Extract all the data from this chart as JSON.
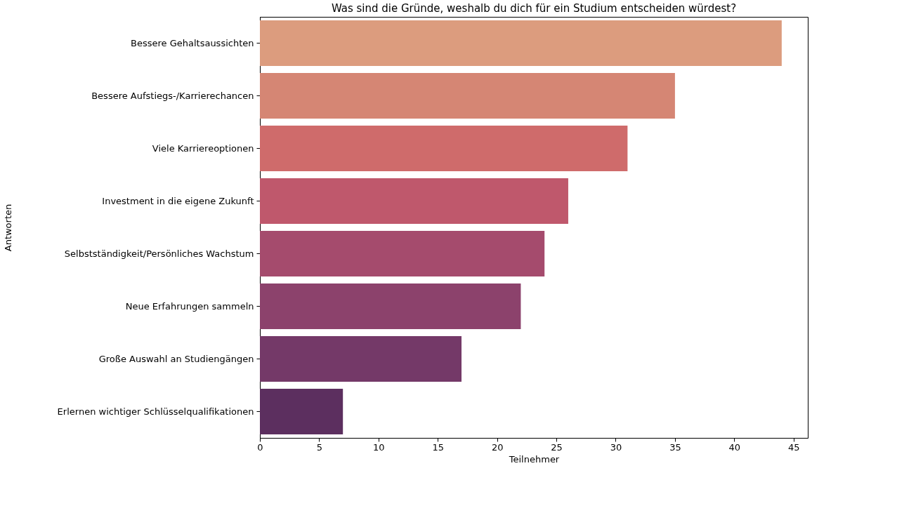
{
  "chart_data": {
    "type": "bar",
    "orientation": "horizontal",
    "title": "Was sind die Gründe, weshalb du dich für ein Studium entscheiden würdest?",
    "xlabel": "Teilnehmer",
    "ylabel": "Antworten",
    "categories": [
      "Bessere Gehaltsaussichten ",
      "Bessere Aufstiegs-/Karrierechancen",
      "Viele Karriereoptionen",
      "Investment in die eigene Zukunft",
      "Selbstständigkeit/Persönliches Wachstum",
      "Neue Erfahrungen sammeln",
      "Große Auswahl an Studiengängen ",
      "Erlernen wichtiger Schlüsselqualifikationen"
    ],
    "values": [
      44,
      35,
      31,
      26,
      24,
      22,
      17,
      7
    ],
    "colors": [
      "#dc9c7e",
      "#d58674",
      "#cf6b6b",
      "#bf586c",
      "#a54b6d",
      "#8c426c",
      "#743968",
      "#5c2f5f"
    ],
    "xlim": [
      0,
      46.2
    ],
    "xticks": [
      0,
      5,
      10,
      15,
      20,
      25,
      30,
      35,
      40,
      45
    ],
    "grid": false,
    "legend": false
  }
}
